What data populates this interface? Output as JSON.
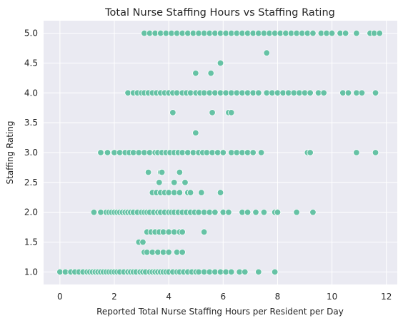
{
  "chart_data": {
    "type": "scatter",
    "title": "Total Nurse Staffing Hours vs Staffing Rating",
    "xlabel": "Reported Total Nurse Staffing Hours per Resident per Day",
    "ylabel": "Staffing Rating",
    "xlim": [
      -0.6,
      12.4
    ],
    "ylim": [
      0.79,
      5.21
    ],
    "xticks": [
      0,
      2,
      4,
      6,
      8,
      10,
      12
    ],
    "xtick_labels": [
      "0",
      "2",
      "4",
      "6",
      "8",
      "10",
      "12"
    ],
    "yticks": [
      1.0,
      1.5,
      2.0,
      2.5,
      3.0,
      3.5,
      4.0,
      4.5,
      5.0
    ],
    "ytick_labels": [
      "1.0",
      "1.5",
      "2.0",
      "2.5",
      "3.0",
      "3.5",
      "4.0",
      "4.5",
      "5.0"
    ],
    "grid": true,
    "style": {
      "background": "#EAEAF2",
      "grid_color": "#FFFFFF",
      "point_color": "#66C2A5",
      "point_edge": "#FFFFFF"
    },
    "points": [
      [
        0.0,
        1.0
      ],
      [
        0.2,
        1.0
      ],
      [
        0.4,
        1.0
      ],
      [
        0.55,
        1.0
      ],
      [
        0.7,
        1.0
      ],
      [
        0.85,
        1.0
      ],
      [
        1.0,
        1.0
      ],
      [
        1.1,
        1.0
      ],
      [
        1.2,
        1.0
      ],
      [
        1.3,
        1.0
      ],
      [
        1.4,
        1.0
      ],
      [
        1.5,
        1.0
      ],
      [
        1.6,
        1.0
      ],
      [
        1.7,
        1.0
      ],
      [
        1.8,
        1.0
      ],
      [
        1.9,
        1.0
      ],
      [
        2.0,
        1.0
      ],
      [
        2.1,
        1.0
      ],
      [
        2.2,
        1.0
      ],
      [
        2.35,
        1.0
      ],
      [
        2.5,
        1.0
      ],
      [
        2.6,
        1.0
      ],
      [
        2.7,
        1.0
      ],
      [
        2.8,
        1.0
      ],
      [
        2.95,
        1.0
      ],
      [
        3.05,
        1.0
      ],
      [
        3.15,
        1.0
      ],
      [
        3.3,
        1.0
      ],
      [
        3.4,
        1.0
      ],
      [
        3.5,
        1.0
      ],
      [
        3.6,
        1.0
      ],
      [
        3.7,
        1.0
      ],
      [
        3.8,
        1.0
      ],
      [
        3.9,
        1.0
      ],
      [
        4.0,
        1.0
      ],
      [
        4.15,
        1.0
      ],
      [
        4.3,
        1.0
      ],
      [
        4.4,
        1.0
      ],
      [
        4.55,
        1.0
      ],
      [
        4.7,
        1.0
      ],
      [
        4.85,
        1.0
      ],
      [
        5.0,
        1.0
      ],
      [
        5.1,
        1.0
      ],
      [
        5.3,
        1.0
      ],
      [
        5.5,
        1.0
      ],
      [
        5.7,
        1.0
      ],
      [
        5.9,
        1.0
      ],
      [
        6.1,
        1.0
      ],
      [
        6.3,
        1.0
      ],
      [
        6.6,
        1.0
      ],
      [
        6.8,
        1.0
      ],
      [
        7.3,
        1.0
      ],
      [
        7.9,
        1.0
      ],
      [
        3.1,
        1.33
      ],
      [
        3.2,
        1.33
      ],
      [
        3.4,
        1.33
      ],
      [
        3.6,
        1.33
      ],
      [
        3.8,
        1.33
      ],
      [
        4.0,
        1.33
      ],
      [
        4.3,
        1.33
      ],
      [
        4.5,
        1.33
      ],
      [
        2.9,
        1.5
      ],
      [
        3.05,
        1.5
      ],
      [
        3.2,
        1.67
      ],
      [
        3.35,
        1.67
      ],
      [
        3.5,
        1.67
      ],
      [
        3.65,
        1.67
      ],
      [
        3.8,
        1.67
      ],
      [
        4.0,
        1.67
      ],
      [
        4.2,
        1.67
      ],
      [
        4.4,
        1.67
      ],
      [
        4.5,
        1.67
      ],
      [
        5.3,
        1.67
      ],
      [
        1.25,
        2.0
      ],
      [
        1.5,
        2.0
      ],
      [
        1.7,
        2.0
      ],
      [
        1.8,
        2.0
      ],
      [
        1.9,
        2.0
      ],
      [
        2.0,
        2.0
      ],
      [
        2.1,
        2.0
      ],
      [
        2.2,
        2.0
      ],
      [
        2.3,
        2.0
      ],
      [
        2.4,
        2.0
      ],
      [
        2.5,
        2.0
      ],
      [
        2.6,
        2.0
      ],
      [
        2.7,
        2.0
      ],
      [
        2.85,
        2.0
      ],
      [
        3.0,
        2.0
      ],
      [
        3.1,
        2.0
      ],
      [
        3.2,
        2.0
      ],
      [
        3.3,
        2.0
      ],
      [
        3.45,
        2.0
      ],
      [
        3.6,
        2.0
      ],
      [
        3.7,
        2.0
      ],
      [
        3.85,
        2.0
      ],
      [
        4.0,
        2.0
      ],
      [
        4.1,
        2.0
      ],
      [
        4.2,
        2.0
      ],
      [
        4.35,
        2.0
      ],
      [
        4.5,
        2.0
      ],
      [
        4.65,
        2.0
      ],
      [
        4.8,
        2.0
      ],
      [
        4.95,
        2.0
      ],
      [
        5.1,
        2.0
      ],
      [
        5.3,
        2.0
      ],
      [
        5.5,
        2.0
      ],
      [
        5.7,
        2.0
      ],
      [
        6.0,
        2.0
      ],
      [
        6.2,
        2.0
      ],
      [
        6.7,
        2.0
      ],
      [
        6.9,
        2.0
      ],
      [
        7.2,
        2.0
      ],
      [
        7.5,
        2.0
      ],
      [
        7.9,
        2.0
      ],
      [
        8.0,
        2.0
      ],
      [
        8.7,
        2.0
      ],
      [
        9.3,
        2.0
      ],
      [
        3.4,
        2.33
      ],
      [
        3.55,
        2.33
      ],
      [
        3.7,
        2.33
      ],
      [
        3.85,
        2.33
      ],
      [
        4.0,
        2.33
      ],
      [
        4.2,
        2.33
      ],
      [
        4.4,
        2.33
      ],
      [
        4.7,
        2.33
      ],
      [
        4.8,
        2.33
      ],
      [
        5.2,
        2.33
      ],
      [
        5.9,
        2.33
      ],
      [
        3.65,
        2.5
      ],
      [
        4.2,
        2.5
      ],
      [
        4.6,
        2.5
      ],
      [
        3.25,
        2.67
      ],
      [
        3.7,
        2.67
      ],
      [
        3.75,
        2.67
      ],
      [
        4.4,
        2.67
      ],
      [
        1.5,
        3.0
      ],
      [
        1.75,
        3.0
      ],
      [
        2.0,
        3.0
      ],
      [
        2.2,
        3.0
      ],
      [
        2.4,
        3.0
      ],
      [
        2.55,
        3.0
      ],
      [
        2.7,
        3.0
      ],
      [
        2.9,
        3.0
      ],
      [
        3.1,
        3.0
      ],
      [
        3.3,
        3.0
      ],
      [
        3.5,
        3.0
      ],
      [
        3.6,
        3.0
      ],
      [
        3.75,
        3.0
      ],
      [
        3.9,
        3.0
      ],
      [
        4.05,
        3.0
      ],
      [
        4.2,
        3.0
      ],
      [
        4.35,
        3.0
      ],
      [
        4.5,
        3.0
      ],
      [
        4.7,
        3.0
      ],
      [
        4.9,
        3.0
      ],
      [
        5.1,
        3.0
      ],
      [
        5.25,
        3.0
      ],
      [
        5.4,
        3.0
      ],
      [
        5.6,
        3.0
      ],
      [
        5.8,
        3.0
      ],
      [
        6.0,
        3.0
      ],
      [
        6.3,
        3.0
      ],
      [
        6.5,
        3.0
      ],
      [
        6.7,
        3.0
      ],
      [
        6.9,
        3.0
      ],
      [
        7.1,
        3.0
      ],
      [
        7.4,
        3.0
      ],
      [
        9.1,
        3.0
      ],
      [
        9.2,
        3.0
      ],
      [
        10.9,
        3.0
      ],
      [
        11.6,
        3.0
      ],
      [
        4.99,
        3.33
      ],
      [
        4.15,
        3.67
      ],
      [
        5.6,
        3.67
      ],
      [
        6.2,
        3.67
      ],
      [
        6.3,
        3.67
      ],
      [
        2.5,
        4.0
      ],
      [
        2.7,
        4.0
      ],
      [
        2.85,
        4.0
      ],
      [
        3.0,
        4.0
      ],
      [
        3.1,
        4.0
      ],
      [
        3.25,
        4.0
      ],
      [
        3.4,
        4.0
      ],
      [
        3.55,
        4.0
      ],
      [
        3.7,
        4.0
      ],
      [
        3.85,
        4.0
      ],
      [
        4.0,
        4.0
      ],
      [
        4.15,
        4.0
      ],
      [
        4.3,
        4.0
      ],
      [
        4.5,
        4.0
      ],
      [
        4.65,
        4.0
      ],
      [
        4.8,
        4.0
      ],
      [
        5.0,
        4.0
      ],
      [
        5.15,
        4.0
      ],
      [
        5.3,
        4.0
      ],
      [
        5.5,
        4.0
      ],
      [
        5.7,
        4.0
      ],
      [
        5.9,
        4.0
      ],
      [
        6.1,
        4.0
      ],
      [
        6.3,
        4.0
      ],
      [
        6.5,
        4.0
      ],
      [
        6.7,
        4.0
      ],
      [
        6.9,
        4.0
      ],
      [
        7.1,
        4.0
      ],
      [
        7.3,
        4.0
      ],
      [
        7.6,
        4.0
      ],
      [
        7.8,
        4.0
      ],
      [
        8.0,
        4.0
      ],
      [
        8.2,
        4.0
      ],
      [
        8.4,
        4.0
      ],
      [
        8.6,
        4.0
      ],
      [
        8.8,
        4.0
      ],
      [
        9.0,
        4.0
      ],
      [
        9.2,
        4.0
      ],
      [
        9.5,
        4.0
      ],
      [
        9.7,
        4.0
      ],
      [
        10.4,
        4.0
      ],
      [
        10.6,
        4.0
      ],
      [
        10.9,
        4.0
      ],
      [
        11.1,
        4.0
      ],
      [
        11.6,
        4.0
      ],
      [
        4.99,
        4.33
      ],
      [
        5.55,
        4.33
      ],
      [
        5.9,
        4.5
      ],
      [
        7.6,
        4.67
      ],
      [
        3.1,
        5.0
      ],
      [
        3.3,
        5.0
      ],
      [
        3.5,
        5.0
      ],
      [
        3.7,
        5.0
      ],
      [
        3.9,
        5.0
      ],
      [
        4.1,
        5.0
      ],
      [
        4.3,
        5.0
      ],
      [
        4.5,
        5.0
      ],
      [
        4.7,
        5.0
      ],
      [
        4.9,
        5.0
      ],
      [
        5.1,
        5.0
      ],
      [
        5.3,
        5.0
      ],
      [
        5.5,
        5.0
      ],
      [
        5.7,
        5.0
      ],
      [
        5.9,
        5.0
      ],
      [
        6.1,
        5.0
      ],
      [
        6.3,
        5.0
      ],
      [
        6.5,
        5.0
      ],
      [
        6.7,
        5.0
      ],
      [
        6.9,
        5.0
      ],
      [
        7.1,
        5.0
      ],
      [
        7.3,
        5.0
      ],
      [
        7.5,
        5.0
      ],
      [
        7.7,
        5.0
      ],
      [
        7.9,
        5.0
      ],
      [
        8.1,
        5.0
      ],
      [
        8.3,
        5.0
      ],
      [
        8.5,
        5.0
      ],
      [
        8.7,
        5.0
      ],
      [
        8.9,
        5.0
      ],
      [
        9.1,
        5.0
      ],
      [
        9.3,
        5.0
      ],
      [
        9.6,
        5.0
      ],
      [
        9.8,
        5.0
      ],
      [
        10.0,
        5.0
      ],
      [
        10.3,
        5.0
      ],
      [
        10.5,
        5.0
      ],
      [
        10.9,
        5.0
      ],
      [
        11.4,
        5.0
      ],
      [
        11.55,
        5.0
      ],
      [
        11.75,
        5.0
      ]
    ]
  }
}
